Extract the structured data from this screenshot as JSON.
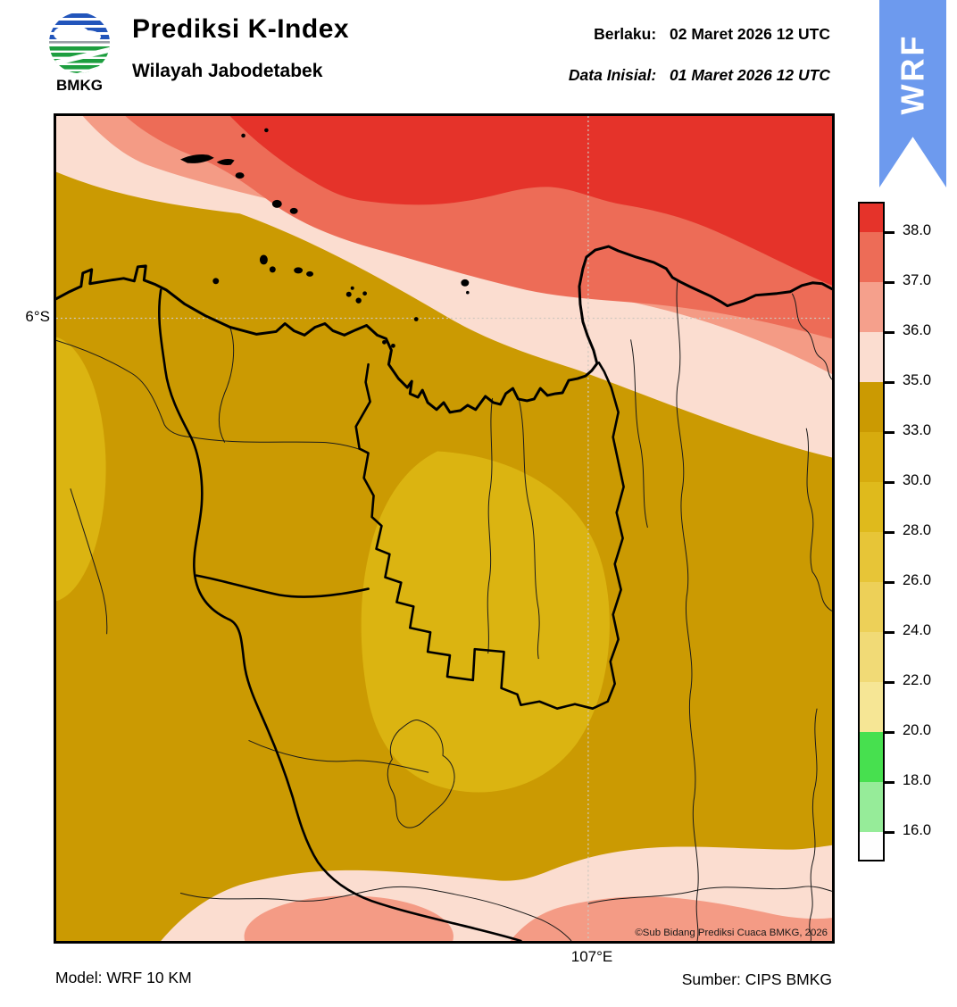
{
  "header": {
    "logo_text": "BMKG",
    "title": "Prediksi K-Index",
    "subtitle": "Wilayah Jabodetabek",
    "valid_label": "Berlaku:",
    "valid_value": "02 Maret 2026 12 UTC",
    "initial_label": "Data Inisial:",
    "initial_value": "01 Maret 2026 12 UTC",
    "ribbon_label": "WRF"
  },
  "map": {
    "lat_label": "6°S",
    "lon_label": "107°E",
    "copyright": "©Sub Bidang Prediksi Cuaca BMKG, 2026"
  },
  "footer": {
    "model": "Model: WRF 10 KM",
    "source": "Sumber: CIPS BMKG"
  },
  "colorbar": {
    "ticks": [
      "38.0",
      "37.0",
      "36.0",
      "35.0",
      "33.0",
      "30.0",
      "28.0",
      "26.0",
      "24.0",
      "22.0",
      "20.0",
      "18.0",
      "16.0"
    ],
    "segments": [
      {
        "range": "> 38.0",
        "color": "#E5332A"
      },
      {
        "range": "37.0 - 38.0",
        "color": "#ED6C57"
      },
      {
        "range": "36.0 - 37.0",
        "color": "#F5A08C"
      },
      {
        "range": "35.0 - 36.0",
        "color": "#FBDDD0"
      },
      {
        "range": "33.0 - 35.0",
        "color": "#CB9A02"
      },
      {
        "range": "30.0 - 33.0",
        "color": "#D7AB0E"
      },
      {
        "range": "28.0 - 30.0",
        "color": "#DFBA1C"
      },
      {
        "range": "26.0 - 28.0",
        "color": "#E7C537"
      },
      {
        "range": "24.0 - 26.0",
        "color": "#EDD058"
      },
      {
        "range": "22.0 - 24.0",
        "color": "#F1DA76"
      },
      {
        "range": "20.0 - 22.0",
        "color": "#F6E695"
      },
      {
        "range": "18.0 - 20.0",
        "color": "#47E04F"
      },
      {
        "range": "16.0 - 18.0",
        "color": "#96EC99"
      },
      {
        "range": "< 16.0",
        "color": "#FEFEFE"
      }
    ]
  },
  "palette": {
    "red38": "#E5332A",
    "salmon37": "#ED6C57",
    "salmon36": "#F49B85",
    "pink35": "#FBDDD0",
    "gold33": "#CB9A02",
    "gold30": "#DBB411",
    "grid": "#CFC8BF",
    "ribbon": "#6D9AEE",
    "logoBlue": "#2255BB",
    "logoGreen": "#1D9E3F"
  }
}
